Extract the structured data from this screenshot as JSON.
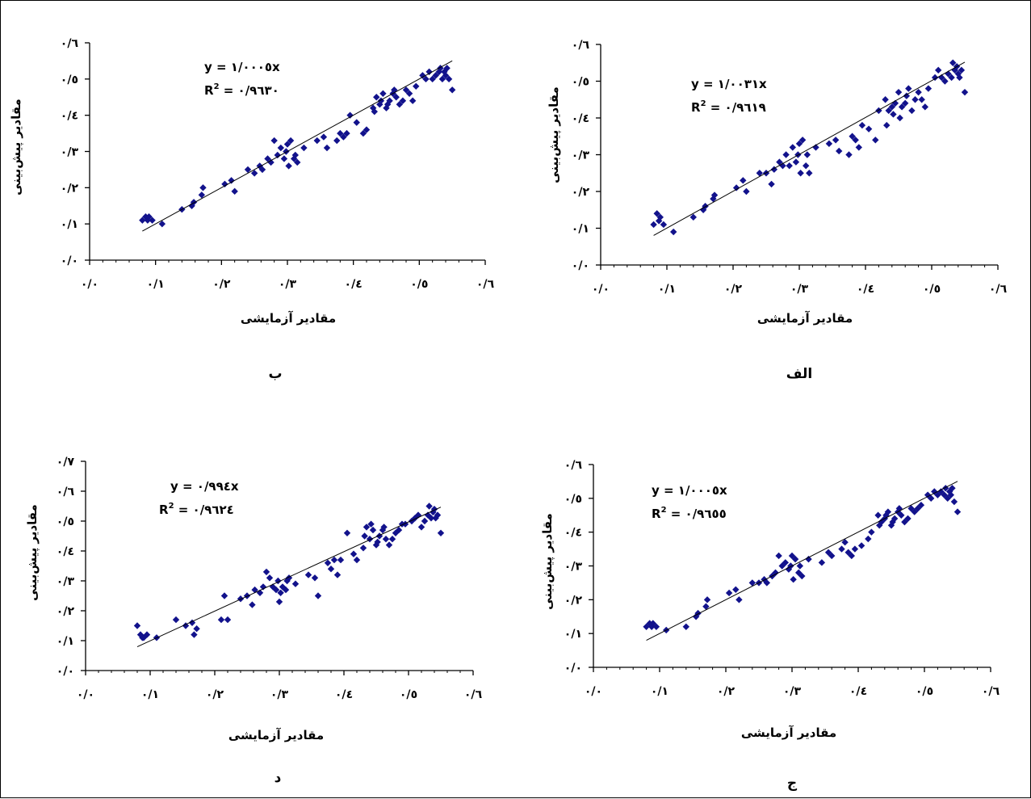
{
  "chart_data": [
    {
      "id": "alef",
      "type": "scatter",
      "panel_label": "الف",
      "xlabel": "مقادیر آزمایشی",
      "ylabel": "مقادیر پیش‌بینی",
      "xlim": [
        0,
        0.6
      ],
      "ylim": [
        0,
        0.6
      ],
      "x_ticks": [
        "۰/۰",
        "۰/۱",
        "۰/۲",
        "۰/۳",
        "۰/٤",
        "۰/٥",
        "۰/٦"
      ],
      "y_ticks": [
        "۰/۰",
        "۰/۱",
        "۰/۲",
        "۰/۳",
        "۰/٤",
        "۰/٥",
        "۰/٦"
      ],
      "equation": "y = ۱/۰۰۳۱x",
      "r2_label": "R",
      "r2_value": " = ۰/۹٦۱۹",
      "trendline": {
        "slope": 1.0031,
        "x_range": [
          0.08,
          0.55
        ]
      },
      "points": [
        [
          0.08,
          0.11
        ],
        [
          0.085,
          0.14
        ],
        [
          0.088,
          0.12
        ],
        [
          0.09,
          0.13
        ],
        [
          0.095,
          0.11
        ],
        [
          0.11,
          0.09
        ],
        [
          0.14,
          0.13
        ],
        [
          0.155,
          0.15
        ],
        [
          0.158,
          0.16
        ],
        [
          0.17,
          0.18
        ],
        [
          0.172,
          0.19
        ],
        [
          0.205,
          0.21
        ],
        [
          0.215,
          0.23
        ],
        [
          0.22,
          0.2
        ],
        [
          0.24,
          0.25
        ],
        [
          0.25,
          0.25
        ],
        [
          0.258,
          0.22
        ],
        [
          0.262,
          0.26
        ],
        [
          0.27,
          0.28
        ],
        [
          0.275,
          0.27
        ],
        [
          0.28,
          0.3
        ],
        [
          0.285,
          0.27
        ],
        [
          0.29,
          0.32
        ],
        [
          0.295,
          0.28
        ],
        [
          0.298,
          0.3
        ],
        [
          0.3,
          0.33
        ],
        [
          0.302,
          0.25
        ],
        [
          0.305,
          0.34
        ],
        [
          0.31,
          0.27
        ],
        [
          0.312,
          0.3
        ],
        [
          0.315,
          0.25
        ],
        [
          0.325,
          0.32
        ],
        [
          0.345,
          0.33
        ],
        [
          0.355,
          0.34
        ],
        [
          0.36,
          0.31
        ],
        [
          0.375,
          0.3
        ],
        [
          0.38,
          0.35
        ],
        [
          0.385,
          0.34
        ],
        [
          0.39,
          0.32
        ],
        [
          0.395,
          0.38
        ],
        [
          0.405,
          0.37
        ],
        [
          0.415,
          0.34
        ],
        [
          0.42,
          0.42
        ],
        [
          0.43,
          0.45
        ],
        [
          0.432,
          0.38
        ],
        [
          0.435,
          0.42
        ],
        [
          0.44,
          0.43
        ],
        [
          0.442,
          0.41
        ],
        [
          0.445,
          0.44
        ],
        [
          0.45,
          0.47
        ],
        [
          0.452,
          0.4
        ],
        [
          0.455,
          0.43
        ],
        [
          0.46,
          0.44
        ],
        [
          0.462,
          0.46
        ],
        [
          0.465,
          0.48
        ],
        [
          0.47,
          0.42
        ],
        [
          0.475,
          0.45
        ],
        [
          0.48,
          0.47
        ],
        [
          0.485,
          0.45
        ],
        [
          0.49,
          0.43
        ],
        [
          0.495,
          0.48
        ],
        [
          0.505,
          0.51
        ],
        [
          0.51,
          0.53
        ],
        [
          0.515,
          0.51
        ],
        [
          0.52,
          0.5
        ],
        [
          0.525,
          0.52
        ],
        [
          0.53,
          0.51
        ],
        [
          0.532,
          0.55
        ],
        [
          0.535,
          0.53
        ],
        [
          0.538,
          0.54
        ],
        [
          0.54,
          0.52
        ],
        [
          0.542,
          0.51
        ],
        [
          0.545,
          0.53
        ],
        [
          0.55,
          0.47
        ]
      ]
    },
    {
      "id": "be",
      "type": "scatter",
      "panel_label": "ب",
      "xlabel": "مقادیر آزمایشی",
      "ylabel": "مقادیر پیش‌بینی",
      "xlim": [
        0,
        0.6
      ],
      "ylim": [
        0,
        0.6
      ],
      "x_ticks": [
        "۰/۰",
        "۰/۱",
        "۰/۲",
        "۰/۳",
        "۰/٤",
        "۰/٥",
        "۰/٦"
      ],
      "y_ticks": [
        "۰/۰",
        "۰/۱",
        "۰/۲",
        "۰/۳",
        "۰/٤",
        "۰/٥",
        "۰/٦"
      ],
      "equation": "y = ۱/۰۰۰٥x",
      "r2_label": "R",
      "r2_value": " = ۰/۹٦۳۰",
      "trendline": {
        "slope": 1.0005,
        "x_range": [
          0.08,
          0.55
        ]
      },
      "points": [
        [
          0.08,
          0.11
        ],
        [
          0.085,
          0.12
        ],
        [
          0.088,
          0.11
        ],
        [
          0.09,
          0.12
        ],
        [
          0.095,
          0.11
        ],
        [
          0.11,
          0.1
        ],
        [
          0.14,
          0.14
        ],
        [
          0.155,
          0.15
        ],
        [
          0.158,
          0.16
        ],
        [
          0.17,
          0.18
        ],
        [
          0.172,
          0.2
        ],
        [
          0.205,
          0.21
        ],
        [
          0.215,
          0.22
        ],
        [
          0.22,
          0.19
        ],
        [
          0.24,
          0.25
        ],
        [
          0.25,
          0.24
        ],
        [
          0.258,
          0.26
        ],
        [
          0.262,
          0.25
        ],
        [
          0.27,
          0.28
        ],
        [
          0.275,
          0.27
        ],
        [
          0.28,
          0.33
        ],
        [
          0.285,
          0.29
        ],
        [
          0.29,
          0.31
        ],
        [
          0.295,
          0.28
        ],
        [
          0.298,
          0.3
        ],
        [
          0.3,
          0.32
        ],
        [
          0.302,
          0.26
        ],
        [
          0.305,
          0.33
        ],
        [
          0.31,
          0.28
        ],
        [
          0.312,
          0.29
        ],
        [
          0.315,
          0.27
        ],
        [
          0.325,
          0.31
        ],
        [
          0.345,
          0.33
        ],
        [
          0.355,
          0.34
        ],
        [
          0.36,
          0.31
        ],
        [
          0.375,
          0.33
        ],
        [
          0.38,
          0.35
        ],
        [
          0.385,
          0.34
        ],
        [
          0.39,
          0.35
        ],
        [
          0.395,
          0.4
        ],
        [
          0.405,
          0.38
        ],
        [
          0.415,
          0.35
        ],
        [
          0.42,
          0.36
        ],
        [
          0.43,
          0.42
        ],
        [
          0.432,
          0.41
        ],
        [
          0.435,
          0.45
        ],
        [
          0.44,
          0.43
        ],
        [
          0.442,
          0.44
        ],
        [
          0.445,
          0.46
        ],
        [
          0.45,
          0.42
        ],
        [
          0.452,
          0.43
        ],
        [
          0.455,
          0.44
        ],
        [
          0.46,
          0.46
        ],
        [
          0.462,
          0.47
        ],
        [
          0.465,
          0.45
        ],
        [
          0.47,
          0.43
        ],
        [
          0.475,
          0.44
        ],
        [
          0.48,
          0.47
        ],
        [
          0.485,
          0.46
        ],
        [
          0.49,
          0.44
        ],
        [
          0.495,
          0.48
        ],
        [
          0.505,
          0.51
        ],
        [
          0.51,
          0.5
        ],
        [
          0.515,
          0.52
        ],
        [
          0.52,
          0.5
        ],
        [
          0.525,
          0.51
        ],
        [
          0.53,
          0.52
        ],
        [
          0.532,
          0.53
        ],
        [
          0.535,
          0.5
        ],
        [
          0.538,
          0.52
        ],
        [
          0.54,
          0.51
        ],
        [
          0.542,
          0.53
        ],
        [
          0.545,
          0.5
        ],
        [
          0.55,
          0.47
        ]
      ]
    },
    {
      "id": "jim",
      "type": "scatter",
      "panel_label": "ج",
      "xlabel": "مقادیر آزمایشی",
      "ylabel": "مقادیر پیش‌بینی",
      "xlim": [
        0,
        0.6
      ],
      "ylim": [
        0,
        0.6
      ],
      "x_ticks": [
        "۰/۰",
        "۰/۱",
        "۰/۲",
        "۰/۳",
        "۰/٤",
        "۰/٥",
        "۰/٦"
      ],
      "y_ticks": [
        "۰/۰",
        "۰/۱",
        "۰/۲",
        "۰/۳",
        "۰/٤",
        "۰/٥",
        "۰/٦"
      ],
      "equation": "y = ۱/۰۰۰٥x",
      "r2_label": "R",
      "r2_value": " = ۰/۹٦٥٥",
      "trendline": {
        "slope": 1.0005,
        "x_range": [
          0.08,
          0.55
        ]
      },
      "points": [
        [
          0.08,
          0.12
        ],
        [
          0.085,
          0.13
        ],
        [
          0.088,
          0.12
        ],
        [
          0.09,
          0.13
        ],
        [
          0.095,
          0.12
        ],
        [
          0.11,
          0.11
        ],
        [
          0.14,
          0.12
        ],
        [
          0.155,
          0.15
        ],
        [
          0.158,
          0.16
        ],
        [
          0.17,
          0.18
        ],
        [
          0.172,
          0.2
        ],
        [
          0.205,
          0.22
        ],
        [
          0.215,
          0.23
        ],
        [
          0.22,
          0.2
        ],
        [
          0.24,
          0.25
        ],
        [
          0.25,
          0.25
        ],
        [
          0.258,
          0.26
        ],
        [
          0.262,
          0.25
        ],
        [
          0.27,
          0.27
        ],
        [
          0.275,
          0.28
        ],
        [
          0.28,
          0.33
        ],
        [
          0.285,
          0.3
        ],
        [
          0.29,
          0.31
        ],
        [
          0.295,
          0.29
        ],
        [
          0.298,
          0.3
        ],
        [
          0.3,
          0.33
        ],
        [
          0.302,
          0.26
        ],
        [
          0.305,
          0.32
        ],
        [
          0.31,
          0.28
        ],
        [
          0.312,
          0.3
        ],
        [
          0.315,
          0.27
        ],
        [
          0.325,
          0.32
        ],
        [
          0.345,
          0.31
        ],
        [
          0.355,
          0.34
        ],
        [
          0.36,
          0.33
        ],
        [
          0.375,
          0.35
        ],
        [
          0.38,
          0.37
        ],
        [
          0.385,
          0.34
        ],
        [
          0.39,
          0.33
        ],
        [
          0.395,
          0.35
        ],
        [
          0.405,
          0.36
        ],
        [
          0.415,
          0.38
        ],
        [
          0.42,
          0.4
        ],
        [
          0.43,
          0.45
        ],
        [
          0.432,
          0.42
        ],
        [
          0.435,
          0.43
        ],
        [
          0.44,
          0.44
        ],
        [
          0.442,
          0.45
        ],
        [
          0.445,
          0.46
        ],
        [
          0.45,
          0.42
        ],
        [
          0.452,
          0.43
        ],
        [
          0.455,
          0.44
        ],
        [
          0.46,
          0.46
        ],
        [
          0.462,
          0.47
        ],
        [
          0.465,
          0.45
        ],
        [
          0.47,
          0.43
        ],
        [
          0.475,
          0.44
        ],
        [
          0.48,
          0.47
        ],
        [
          0.485,
          0.46
        ],
        [
          0.49,
          0.47
        ],
        [
          0.495,
          0.48
        ],
        [
          0.505,
          0.51
        ],
        [
          0.51,
          0.5
        ],
        [
          0.515,
          0.52
        ],
        [
          0.52,
          0.51
        ],
        [
          0.525,
          0.52
        ],
        [
          0.53,
          0.51
        ],
        [
          0.532,
          0.53
        ],
        [
          0.535,
          0.5
        ],
        [
          0.538,
          0.52
        ],
        [
          0.54,
          0.51
        ],
        [
          0.542,
          0.53
        ],
        [
          0.545,
          0.49
        ],
        [
          0.55,
          0.46
        ]
      ]
    },
    {
      "id": "dal",
      "type": "scatter",
      "panel_label": "د",
      "xlabel": "مقادیر آزمایشی",
      "ylabel": "مقادیر پیش‌بینی",
      "xlim": [
        0,
        0.6
      ],
      "ylim": [
        0,
        0.7
      ],
      "x_ticks": [
        "۰/۰",
        "۰/۱",
        "۰/۲",
        "۰/۳",
        "۰/٤",
        "۰/٥",
        "۰/٦"
      ],
      "y_ticks": [
        "۰/۰",
        "۰/۱",
        "۰/۲",
        "۰/۳",
        "۰/٤",
        "۰/٥",
        "۰/٦",
        "۰/۷"
      ],
      "equation": "y = ۰/۹۹٤x",
      "r2_label": "R",
      "r2_value": " = ۰/۹٦۲٤",
      "trendline": {
        "slope": 0.994,
        "x_range": [
          0.08,
          0.55
        ]
      },
      "points": [
        [
          0.08,
          0.15
        ],
        [
          0.085,
          0.12
        ],
        [
          0.088,
          0.11
        ],
        [
          0.09,
          0.11
        ],
        [
          0.095,
          0.12
        ],
        [
          0.11,
          0.11
        ],
        [
          0.14,
          0.17
        ],
        [
          0.155,
          0.15
        ],
        [
          0.165,
          0.16
        ],
        [
          0.168,
          0.12
        ],
        [
          0.172,
          0.14
        ],
        [
          0.21,
          0.17
        ],
        [
          0.215,
          0.25
        ],
        [
          0.22,
          0.17
        ],
        [
          0.24,
          0.24
        ],
        [
          0.25,
          0.25
        ],
        [
          0.258,
          0.22
        ],
        [
          0.262,
          0.27
        ],
        [
          0.27,
          0.26
        ],
        [
          0.275,
          0.28
        ],
        [
          0.28,
          0.33
        ],
        [
          0.285,
          0.31
        ],
        [
          0.29,
          0.28
        ],
        [
          0.295,
          0.27
        ],
        [
          0.298,
          0.3
        ],
        [
          0.3,
          0.23
        ],
        [
          0.302,
          0.26
        ],
        [
          0.305,
          0.28
        ],
        [
          0.31,
          0.27
        ],
        [
          0.312,
          0.3
        ],
        [
          0.315,
          0.31
        ],
        [
          0.325,
          0.29
        ],
        [
          0.345,
          0.32
        ],
        [
          0.355,
          0.31
        ],
        [
          0.36,
          0.25
        ],
        [
          0.375,
          0.36
        ],
        [
          0.38,
          0.34
        ],
        [
          0.385,
          0.37
        ],
        [
          0.39,
          0.32
        ],
        [
          0.395,
          0.37
        ],
        [
          0.405,
          0.46
        ],
        [
          0.415,
          0.39
        ],
        [
          0.42,
          0.37
        ],
        [
          0.43,
          0.41
        ],
        [
          0.432,
          0.45
        ],
        [
          0.435,
          0.48
        ],
        [
          0.44,
          0.44
        ],
        [
          0.442,
          0.49
        ],
        [
          0.445,
          0.47
        ],
        [
          0.45,
          0.42
        ],
        [
          0.452,
          0.43
        ],
        [
          0.455,
          0.45
        ],
        [
          0.46,
          0.47
        ],
        [
          0.462,
          0.48
        ],
        [
          0.465,
          0.44
        ],
        [
          0.47,
          0.42
        ],
        [
          0.475,
          0.44
        ],
        [
          0.48,
          0.46
        ],
        [
          0.485,
          0.47
        ],
        [
          0.49,
          0.49
        ],
        [
          0.495,
          0.49
        ],
        [
          0.505,
          0.5
        ],
        [
          0.51,
          0.51
        ],
        [
          0.515,
          0.52
        ],
        [
          0.52,
          0.48
        ],
        [
          0.525,
          0.5
        ],
        [
          0.53,
          0.52
        ],
        [
          0.532,
          0.55
        ],
        [
          0.535,
          0.51
        ],
        [
          0.538,
          0.53
        ],
        [
          0.54,
          0.54
        ],
        [
          0.542,
          0.51
        ],
        [
          0.545,
          0.52
        ],
        [
          0.55,
          0.46
        ]
      ]
    }
  ]
}
